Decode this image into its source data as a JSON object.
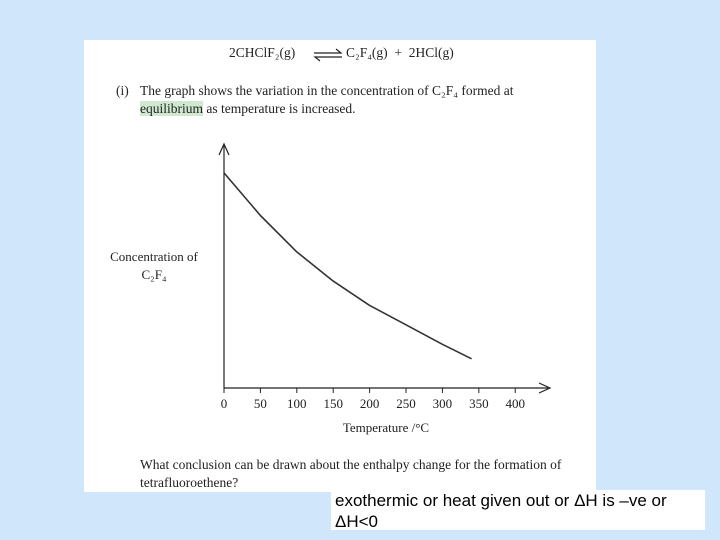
{
  "equation": {
    "left": "2CHClF₂(g)",
    "right": "C₂F₄(g)  +  2HCl(g)"
  },
  "question_i": {
    "label": "(i)",
    "line1": "The graph shows the variation in the concentration of C₂F₄ formed at",
    "highlight": "equilibrium",
    "line2_rest": " as temperature is increased."
  },
  "chart_data": {
    "type": "line",
    "y_label_line1": "Concentration of",
    "y_label_line2": "C₂F₄",
    "x_label": "Temperature /°C",
    "x": [
      0,
      50,
      100,
      150,
      200,
      250,
      300,
      340
    ],
    "values": [
      0.885,
      0.71,
      0.56,
      0.44,
      0.34,
      0.26,
      0.18,
      0.12
    ],
    "color": "#333333",
    "xlim": [
      0,
      445
    ],
    "ylim": [
      0,
      1
    ],
    "xticks": [
      0,
      50,
      100,
      150,
      200,
      250,
      300,
      350,
      400
    ]
  },
  "question_ii": "What conclusion can be drawn about the enthalpy change for the formation of tetrafluoroethene?",
  "answer": "exothermic or heat given out or ΔH is –ve or ΔH<0"
}
